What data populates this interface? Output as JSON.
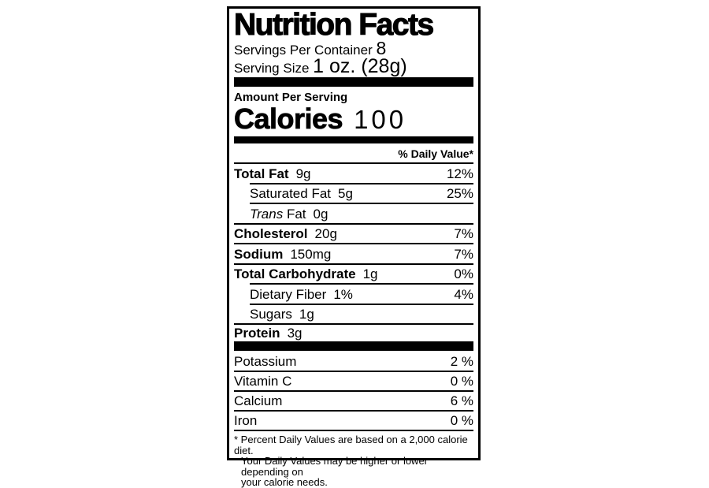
{
  "title": "Nutrition Facts",
  "servings": {
    "label": "Servings Per Container",
    "value": "8"
  },
  "serving_size": {
    "label": "Serving Size",
    "value": "1 oz. (28g)"
  },
  "amount_per_serving": "Amount Per Serving",
  "calories": {
    "label": "Calories",
    "value": "100"
  },
  "daily_value_header": "% Daily Value*",
  "nutrients": [
    {
      "name": "Total Fat",
      "amount": "9g",
      "dv": "12%"
    },
    {
      "name": "Saturated Fat",
      "amount": "5g",
      "dv": "25%"
    },
    {
      "name_italic": "Trans",
      "name": "Fat",
      "amount": "0g",
      "dv": ""
    },
    {
      "name": "Cholesterol",
      "amount": "20g",
      "dv": "7%"
    },
    {
      "name": "Sodium",
      "amount": "150mg",
      "dv": "7%"
    },
    {
      "name": "Total Carbohydrate",
      "amount": "1g",
      "dv": "0%"
    },
    {
      "name": "Dietary Fiber",
      "amount": "1%",
      "dv": "4%"
    },
    {
      "name": "Sugars",
      "amount": "1g",
      "dv": ""
    },
    {
      "name": "Protein",
      "amount": "3g",
      "dv": ""
    }
  ],
  "vitamins": [
    {
      "name": "Potassium",
      "dv": "2 %"
    },
    {
      "name": "Vitamin C",
      "dv": "0 %"
    },
    {
      "name": "Calcium",
      "dv": "6 %"
    },
    {
      "name": "Iron",
      "dv": "0 %"
    }
  ],
  "footnote": {
    "line1": "* Percent Daily Values are based on a 2,000 calorie diet.",
    "line2": "Your Daily Values may be higher or lower depending on",
    "line3": "your calorie needs."
  },
  "colors": {
    "ink": "#000000",
    "paper": "#ffffff"
  }
}
